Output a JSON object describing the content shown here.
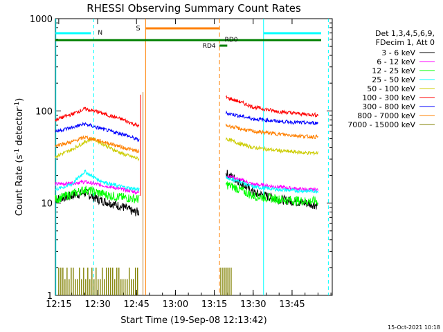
{
  "chart_data": {
    "type": "line",
    "title": "RHESSI Observing Summary Count Rates",
    "xlabel": "Start Time (19-Sep-08 12:13:42)",
    "ylabel_main": "Count Rate (s",
    "ylabel_sup1": "-1",
    "ylabel_mid": " detector",
    "ylabel_sup2": "-1",
    "ylabel_end": ")",
    "yscale": "log",
    "ylim": [
      1,
      1000
    ],
    "xlim_min": [
      13.7,
      120.5
    ],
    "x_tick_labels": [
      "12:15",
      "12:30",
      "12:45",
      "13:00",
      "13:15",
      "13:30",
      "13:45"
    ],
    "x_tick_min": [
      15,
      30,
      45,
      60,
      75,
      90,
      105
    ],
    "y_tick_labels": [
      "1",
      "10",
      "100",
      "1000"
    ],
    "y_tick_values": [
      1,
      10,
      100,
      1000
    ],
    "legend_header": [
      "Det 1,3,4,5,6,9,",
      "FDecim 1, Att 0"
    ],
    "legend_position": "right",
    "series": [
      {
        "name": "3 - 6 keV",
        "color": "#000000",
        "pre": [
          [
            13.7,
            11
          ],
          [
            20,
            12
          ],
          [
            25,
            13
          ],
          [
            30,
            11
          ],
          [
            35,
            10
          ],
          [
            40,
            9
          ],
          [
            44,
            8
          ],
          [
            46,
            8
          ]
        ],
        "post": [
          [
            79.5,
            21
          ],
          [
            85,
            17
          ],
          [
            90,
            13
          ],
          [
            100,
            11
          ],
          [
            110,
            10
          ],
          [
            115,
            9.5
          ]
        ]
      },
      {
        "name": "6 - 12 keV",
        "color": "#ff00ff",
        "pre": [
          [
            13.7,
            16
          ],
          [
            20,
            16.5
          ],
          [
            25,
            17
          ],
          [
            30,
            16
          ],
          [
            35,
            15
          ],
          [
            40,
            14
          ],
          [
            46,
            13
          ]
        ],
        "post": [
          [
            79.5,
            20
          ],
          [
            85,
            18
          ],
          [
            90,
            16
          ],
          [
            100,
            15
          ],
          [
            110,
            14
          ],
          [
            115,
            14
          ]
        ]
      },
      {
        "name": "12 - 25 keV",
        "color": "#00ff00",
        "pre": [
          [
            13.7,
            11
          ],
          [
            20,
            12.5
          ],
          [
            25,
            14
          ],
          [
            30,
            13
          ],
          [
            35,
            12
          ],
          [
            40,
            11.5
          ],
          [
            46,
            11
          ]
        ],
        "post": [
          [
            79.5,
            16
          ],
          [
            85,
            14
          ],
          [
            90,
            12
          ],
          [
            100,
            11
          ],
          [
            110,
            10.5
          ],
          [
            115,
            10.5
          ]
        ]
      },
      {
        "name": "25 - 50 keV",
        "color": "#00ffff",
        "pre": [
          [
            13.7,
            14
          ],
          [
            20,
            16
          ],
          [
            25,
            22
          ],
          [
            30,
            18
          ],
          [
            35,
            16
          ],
          [
            40,
            15
          ],
          [
            46,
            14
          ]
        ],
        "post": [
          [
            79.5,
            19
          ],
          [
            85,
            17
          ],
          [
            90,
            15
          ],
          [
            100,
            14
          ],
          [
            110,
            13.5
          ],
          [
            115,
            13.5
          ]
        ]
      },
      {
        "name": "50 - 100 keV",
        "color": "#cccc00",
        "pre": [
          [
            13.7,
            32
          ],
          [
            20,
            38
          ],
          [
            25,
            46
          ],
          [
            28,
            50
          ],
          [
            32,
            44
          ],
          [
            36,
            38
          ],
          [
            40,
            34
          ],
          [
            46,
            30
          ]
        ],
        "post": [
          [
            79.5,
            50
          ],
          [
            85,
            44
          ],
          [
            90,
            40
          ],
          [
            100,
            37
          ],
          [
            110,
            35
          ],
          [
            115,
            35
          ]
        ]
      },
      {
        "name": "100 - 300 keV",
        "color": "#ff0000",
        "pre": [
          [
            13.7,
            80
          ],
          [
            20,
            92
          ],
          [
            25,
            105
          ],
          [
            30,
            98
          ],
          [
            35,
            88
          ],
          [
            40,
            80
          ],
          [
            46,
            68
          ]
        ],
        "post": [
          [
            79.5,
            140
          ],
          [
            85,
            125
          ],
          [
            90,
            110
          ],
          [
            100,
            98
          ],
          [
            110,
            92
          ],
          [
            115,
            90
          ]
        ]
      },
      {
        "name": "300 - 800 keV",
        "color": "#0000ff",
        "pre": [
          [
            13.7,
            60
          ],
          [
            20,
            66
          ],
          [
            25,
            72
          ],
          [
            30,
            66
          ],
          [
            35,
            60
          ],
          [
            40,
            56
          ],
          [
            46,
            48
          ]
        ],
        "post": [
          [
            79.5,
            95
          ],
          [
            85,
            88
          ],
          [
            90,
            82
          ],
          [
            100,
            77
          ],
          [
            110,
            74
          ],
          [
            115,
            74
          ]
        ]
      },
      {
        "name": "800 - 7000 keV",
        "color": "#ff8000",
        "pre": [
          [
            13.7,
            42
          ],
          [
            20,
            46
          ],
          [
            25,
            52
          ],
          [
            30,
            48
          ],
          [
            35,
            44
          ],
          [
            40,
            40
          ],
          [
            46,
            36
          ]
        ],
        "post": [
          [
            79.5,
            70
          ],
          [
            85,
            64
          ],
          [
            90,
            60
          ],
          [
            100,
            56
          ],
          [
            110,
            53
          ],
          [
            115,
            52
          ]
        ]
      },
      {
        "name": "7000 - 15000 keV",
        "color": "#808000",
        "pre": [
          [
            15,
            2
          ],
          [
            46,
            2
          ]
        ],
        "post": [
          [
            79.5,
            2
          ],
          [
            82,
            1.8
          ]
        ]
      }
    ],
    "annotations": {
      "night_label": "N",
      "saa_label": "S",
      "rd0_label": "RD0",
      "rd4_label": "RD4"
    },
    "colors": {
      "night": "#00ffff",
      "saa": "#ff8000",
      "decim": "#008000",
      "flare_line": "#c08030",
      "axis": "#000000"
    }
  },
  "footer": {
    "timestamp": "15-Oct-2021 10:18"
  }
}
